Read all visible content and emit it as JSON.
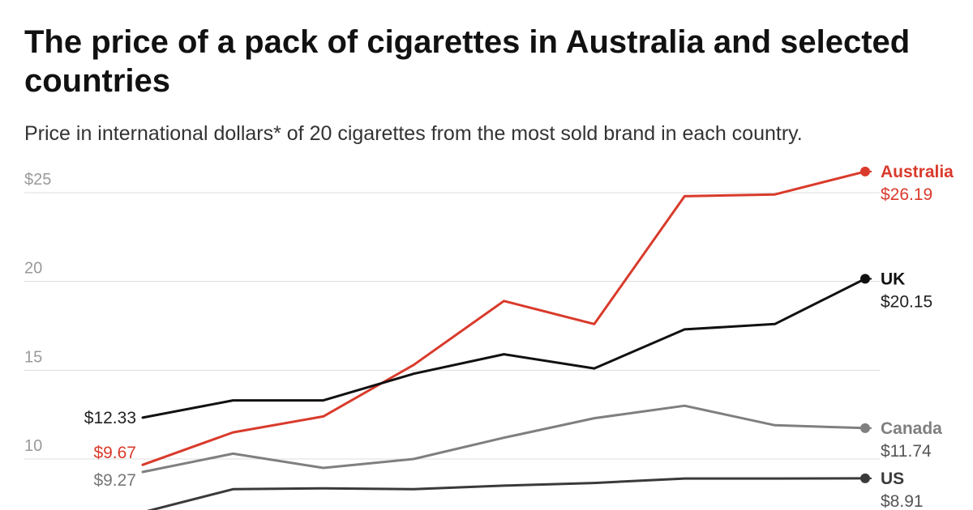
{
  "chart_data": {
    "type": "line",
    "title": "The price of a pack of cigarettes in Australia and selected countries",
    "subtitle": "Price in international dollars* of 20 cigarettes from the most sold brand in each country.",
    "xlabel": "",
    "ylabel": "",
    "x": [
      1,
      2,
      3,
      4,
      5,
      6,
      7,
      8,
      9
    ],
    "yticks": [
      {
        "value": 25,
        "label": "$25"
      },
      {
        "value": 20,
        "label": "20"
      },
      {
        "value": 15,
        "label": "15"
      },
      {
        "value": 10,
        "label": "10"
      }
    ],
    "ylim": [
      7.2,
      27.5
    ],
    "grid": true,
    "series": [
      {
        "name": "Australia",
        "color": "#d93a2b",
        "values": [
          9.67,
          11.5,
          12.4,
          15.3,
          18.9,
          17.6,
          24.8,
          24.9,
          26.19
        ],
        "start_label": "$9.67",
        "end_label": "$26.19"
      },
      {
        "name": "UK",
        "color": "#111111",
        "values": [
          12.33,
          13.3,
          13.3,
          14.8,
          15.9,
          15.1,
          17.3,
          17.6,
          20.15
        ],
        "start_label": "$12.33",
        "end_label": "$20.15"
      },
      {
        "name": "Canada",
        "color": "#7f7f7f",
        "values": [
          9.27,
          10.3,
          9.5,
          10.0,
          11.2,
          12.3,
          13.0,
          11.9,
          11.74
        ],
        "start_label": "$9.27",
        "end_label": "$11.74"
      },
      {
        "name": "US",
        "color": "#3a3a3a",
        "values": [
          7.0,
          8.3,
          8.35,
          8.3,
          8.5,
          8.65,
          8.9,
          8.9,
          8.91
        ],
        "start_label": "",
        "end_label": "$8.91"
      }
    ]
  }
}
